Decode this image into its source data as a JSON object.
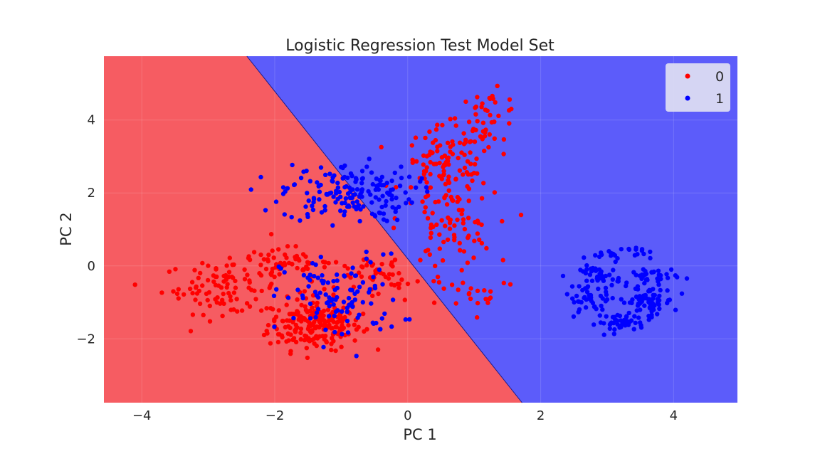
{
  "chart_data": {
    "type": "scatter",
    "title": "Logistic Regression Test Model Set",
    "xlabel": "PC 1",
    "ylabel": "PC 2",
    "xlim": [
      -4.57,
      4.96
    ],
    "ylim": [
      -3.75,
      5.75
    ],
    "xticks": [
      -4,
      -2,
      0,
      2,
      4
    ],
    "yticks": [
      -2,
      0,
      2,
      4
    ],
    "xtick_labels": [
      "−4",
      "−2",
      "0",
      "2",
      "4"
    ],
    "ytick_labels": [
      "−2",
      "0",
      "2",
      "4"
    ],
    "grid": true,
    "legend_position": "top-right",
    "decision_boundary": {
      "description_points": [
        [
          -2.42,
          5.75
        ],
        [
          1.72,
          -3.75
        ]
      ],
      "region_colors": {
        "0": "#f65c62",
        "1": "#5c5cfa"
      }
    },
    "series": [
      {
        "name": "0",
        "color": "#ff0000",
        "clusters": [
          {
            "center": [
              -1.4,
              -1.6
            ],
            "spread": [
              0.35,
              0.35
            ],
            "n": 220
          },
          {
            "center": [
              -2.8,
              -0.6
            ],
            "spread": [
              0.45,
              0.35
            ],
            "n": 90
          },
          {
            "center": [
              -1.9,
              0.05
            ],
            "spread": [
              0.35,
              0.25
            ],
            "n": 60
          },
          {
            "center": [
              0.6,
              2.7
            ],
            "spread": [
              0.35,
              0.55
            ],
            "n": 110
          },
          {
            "center": [
              1.2,
              4.1
            ],
            "spread": [
              0.25,
              0.35
            ],
            "n": 40
          },
          {
            "center": [
              0.6,
              1.0
            ],
            "spread": [
              0.35,
              0.5
            ],
            "n": 70
          },
          {
            "center": [
              -0.4,
              -0.3
            ],
            "spread": [
              0.5,
              0.35
            ],
            "n": 60
          },
          {
            "center": [
              1.1,
              -0.7
            ],
            "spread": [
              0.3,
              0.25
            ],
            "n": 18
          }
        ]
      },
      {
        "name": "1",
        "color": "#0000ff",
        "clusters": [
          {
            "center": [
              -0.9,
              2.0
            ],
            "spread": [
              0.5,
              0.4
            ],
            "n": 170
          },
          {
            "center": [
              -1.0,
              -0.9
            ],
            "spread": [
              0.45,
              0.6
            ],
            "n": 110
          },
          {
            "center": [
              3.6,
              -1.0
            ],
            "spread": [
              0.2,
              0.2
            ],
            "n": 70
          },
          {
            "center": [
              3.2,
              -1.55
            ],
            "spread": [
              0.18,
              0.12
            ],
            "n": 40
          },
          {
            "center": [
              2.9,
              -0.3
            ],
            "spread": [
              0.15,
              0.15
            ],
            "n": 40
          },
          {
            "center": [
              2.75,
              -0.95
            ],
            "spread": [
              0.2,
              0.15
            ],
            "n": 35
          },
          {
            "center": [
              3.65,
              -0.3
            ],
            "spread": [
              0.2,
              0.15
            ],
            "n": 35
          },
          {
            "center": [
              3.15,
              0.35
            ],
            "spread": [
              0.25,
              0.1
            ],
            "n": 25
          }
        ]
      }
    ]
  }
}
